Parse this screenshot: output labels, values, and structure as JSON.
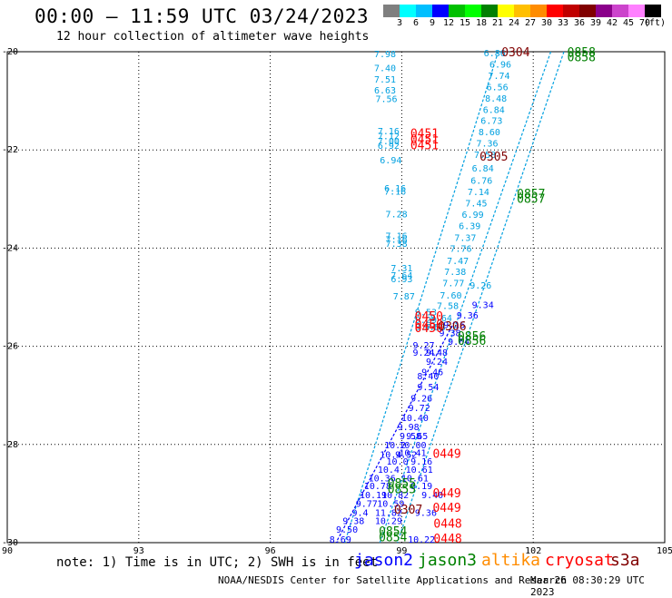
{
  "header": {
    "title": "00:00 – 11:59 UTC 03/24/2023",
    "subtitle": "12 hour collection of altimeter wave heights"
  },
  "scale": {
    "unit": "(ft)",
    "ticks": [
      "3",
      "6",
      "9",
      "12",
      "15",
      "18",
      "21",
      "24",
      "27",
      "30",
      "33",
      "36",
      "39",
      "42",
      "45",
      "70"
    ],
    "colors": [
      "#7f7f7f",
      "#00ffff",
      "#00bfff",
      "#0000ff",
      "#00c000",
      "#00ff00",
      "#008000",
      "#ffff00",
      "#ffbf00",
      "#ff8c00",
      "#ff0000",
      "#c00000",
      "#800000",
      "#8b008b",
      "#cc44cc",
      "#ff80ff",
      "#000000"
    ]
  },
  "footer": {
    "note": "note: 1) Time is in UTC; 2) SWH is in feet",
    "credit": "NOAA/NESDIS Center for Satellite Applications and Research",
    "timestamp": "Mar 26 08:30:29 UTC 2023"
  },
  "satellites": [
    {
      "name": "jason2",
      "color": "#0000ff"
    },
    {
      "name": "jason3",
      "color": "#008000"
    },
    {
      "name": "altika",
      "color": "#ff8c00"
    },
    {
      "name": "cryosat",
      "color": "#ff0000"
    },
    {
      "name": "s3a",
      "color": "#800000"
    }
  ],
  "chart_data": {
    "type": "scatter",
    "xlim": [
      90,
      105
    ],
    "ylim": [
      -30,
      -20
    ],
    "xticks": [
      "90",
      "93",
      "96",
      "99",
      "102",
      "105"
    ],
    "yticks": [
      "-20",
      "-22",
      "-24",
      "-26",
      "-28",
      "-30"
    ],
    "grid": true,
    "series": [
      {
        "name": "jason3 track A",
        "color": "#00a0e0",
        "points": [
          {
            "x": 98.62,
            "y": -20.04,
            "label": "7.98"
          },
          {
            "x": 98.62,
            "y": -20.32,
            "label": "7.40"
          },
          {
            "x": 98.62,
            "y": -20.55,
            "label": "7.51"
          },
          {
            "x": 98.62,
            "y": -20.78,
            "label": "6.63"
          },
          {
            "x": 98.65,
            "y": -20.95,
            "label": "7.56"
          },
          {
            "x": 98.7,
            "y": -21.61,
            "label": "7.16"
          },
          {
            "x": 98.7,
            "y": -21.71,
            "label": "7.12"
          },
          {
            "x": 98.7,
            "y": -21.81,
            "label": "7.00"
          },
          {
            "x": 98.7,
            "y": -21.9,
            "label": "6.92"
          },
          {
            "x": 98.75,
            "y": -22.2,
            "label": "6.94"
          },
          {
            "x": 98.85,
            "y": -22.77,
            "label": "6.16"
          },
          {
            "x": 98.85,
            "y": -22.84,
            "label": "7.16"
          },
          {
            "x": 98.88,
            "y": -23.3,
            "label": "7.28"
          },
          {
            "x": 98.88,
            "y": -23.74,
            "label": "7.16"
          },
          {
            "x": 98.88,
            "y": -23.82,
            "label": "7.16"
          },
          {
            "x": 98.88,
            "y": -23.9,
            "label": "7.38"
          },
          {
            "x": 99.0,
            "y": -24.4,
            "label": "7.31"
          },
          {
            "x": 99.0,
            "y": -24.55,
            "label": "7.64"
          },
          {
            "x": 99.0,
            "y": -24.62,
            "label": "6.93"
          },
          {
            "x": 99.05,
            "y": -24.97,
            "label": "7.87"
          },
          {
            "x": 101.12,
            "y": -20.02,
            "label": "6.86"
          },
          {
            "x": 101.25,
            "y": -20.25,
            "label": "6.96"
          },
          {
            "x": 101.22,
            "y": -20.48,
            "label": "7.74"
          },
          {
            "x": 101.18,
            "y": -20.71,
            "label": "6.56"
          },
          {
            "x": 101.15,
            "y": -20.94,
            "label": "8.48"
          },
          {
            "x": 101.1,
            "y": -21.17,
            "label": "6.84"
          },
          {
            "x": 101.05,
            "y": -21.4,
            "label": "6.73"
          },
          {
            "x": 101.0,
            "y": -21.63,
            "label": "8.60"
          },
          {
            "x": 100.95,
            "y": -21.86,
            "label": "7.36"
          },
          {
            "x": 100.9,
            "y": -22.09,
            "label": "7.58"
          },
          {
            "x": 100.85,
            "y": -22.37,
            "label": "6.84"
          },
          {
            "x": 100.82,
            "y": -22.62,
            "label": "6.76"
          },
          {
            "x": 100.75,
            "y": -22.85,
            "label": "7.14"
          },
          {
            "x": 100.7,
            "y": -23.08,
            "label": "7.45"
          },
          {
            "x": 100.62,
            "y": -23.31,
            "label": "6.99"
          },
          {
            "x": 100.55,
            "y": -23.54,
            "label": "6.39"
          },
          {
            "x": 100.45,
            "y": -23.78,
            "label": "7.37"
          },
          {
            "x": 100.35,
            "y": -24.0,
            "label": "7.76"
          },
          {
            "x": 100.28,
            "y": -24.25,
            "label": "7.47"
          },
          {
            "x": 100.22,
            "y": -24.47,
            "label": "7.38"
          },
          {
            "x": 100.18,
            "y": -24.7,
            "label": "7.77"
          },
          {
            "x": 100.12,
            "y": -24.95,
            "label": "7.60"
          },
          {
            "x": 100.05,
            "y": -25.17,
            "label": "7.58"
          },
          {
            "x": 99.9,
            "y": -25.42,
            "label": "8.64"
          },
          {
            "x": 99.55,
            "y": -25.3,
            "label": "9.53"
          },
          {
            "x": 99.55,
            "y": -25.45,
            "label": "9.29"
          },
          {
            "x": 99.55,
            "y": -25.6,
            "label": "8.74"
          },
          {
            "x": 99.75,
            "y": -25.6,
            "label": "9.58"
          },
          {
            "x": 100.8,
            "y": -24.75,
            "label": "9.26"
          }
        ]
      },
      {
        "name": "jason2",
        "color": "#0000ff",
        "points": [
          {
            "x": 100.85,
            "y": -25.15,
            "label": "9.34"
          },
          {
            "x": 100.5,
            "y": -25.36,
            "label": "9.36"
          },
          {
            "x": 100.2,
            "y": -25.55,
            "label": "9.15"
          },
          {
            "x": 100.1,
            "y": -25.72,
            "label": "9.38"
          },
          {
            "x": 100.3,
            "y": -25.9,
            "label": "9.64"
          },
          {
            "x": 99.5,
            "y": -25.97,
            "label": "9.27"
          },
          {
            "x": 99.5,
            "y": -26.12,
            "label": "9.24"
          },
          {
            "x": 99.8,
            "y": -26.12,
            "label": "9.48"
          },
          {
            "x": 99.8,
            "y": -26.3,
            "label": "9.24"
          },
          {
            "x": 99.7,
            "y": -26.52,
            "label": "9.46"
          },
          {
            "x": 99.6,
            "y": -26.6,
            "label": "8.40"
          },
          {
            "x": 99.6,
            "y": -26.82,
            "label": "9.54"
          },
          {
            "x": 99.45,
            "y": -27.05,
            "label": "9.26"
          },
          {
            "x": 99.4,
            "y": -27.25,
            "label": "9.72"
          },
          {
            "x": 99.3,
            "y": -27.45,
            "label": "10.40"
          },
          {
            "x": 99.15,
            "y": -27.63,
            "label": "9.98"
          },
          {
            "x": 99.35,
            "y": -27.82,
            "label": "9.65"
          },
          {
            "x": 99.2,
            "y": -27.82,
            "label": "9.58"
          },
          {
            "x": 99.25,
            "y": -28.0,
            "label": "10.00"
          },
          {
            "x": 98.85,
            "y": -28.0,
            "label": "10.2"
          },
          {
            "x": 99.25,
            "y": -28.16,
            "label": "10.41"
          },
          {
            "x": 98.75,
            "y": -28.2,
            "label": "10.4"
          },
          {
            "x": 99.1,
            "y": -28.2,
            "label": "9.52"
          },
          {
            "x": 98.9,
            "y": -28.34,
            "label": "10.0"
          },
          {
            "x": 99.45,
            "y": -28.34,
            "label": "9.16"
          },
          {
            "x": 98.7,
            "y": -28.5,
            "label": "10.4"
          },
          {
            "x": 99.4,
            "y": -28.5,
            "label": "10.61"
          },
          {
            "x": 98.55,
            "y": -28.68,
            "label": "10.36"
          },
          {
            "x": 99.3,
            "y": -28.68,
            "label": "10.61"
          },
          {
            "x": 98.45,
            "y": -28.84,
            "label": "10.78"
          },
          {
            "x": 99.45,
            "y": -28.84,
            "label": "9.19"
          },
          {
            "x": 98.35,
            "y": -29.02,
            "label": "10.19"
          },
          {
            "x": 98.85,
            "y": -29.02,
            "label": "10.82"
          },
          {
            "x": 99.7,
            "y": -29.02,
            "label": "9.40"
          },
          {
            "x": 98.2,
            "y": -29.2,
            "label": "9.77"
          },
          {
            "x": 98.75,
            "y": -29.2,
            "label": "10.59"
          },
          {
            "x": 98.05,
            "y": -29.38,
            "label": "9.4"
          },
          {
            "x": 98.7,
            "y": -29.38,
            "label": "11.82"
          },
          {
            "x": 99.55,
            "y": -29.38,
            "label": "9.36"
          },
          {
            "x": 97.9,
            "y": -29.55,
            "label": "9.38"
          },
          {
            "x": 98.7,
            "y": -29.55,
            "label": "10.29"
          },
          {
            "x": 97.75,
            "y": -29.72,
            "label": "9.50"
          },
          {
            "x": 99.45,
            "y": -29.93,
            "label": "10.22"
          },
          {
            "x": 97.6,
            "y": -29.93,
            "label": "8.69"
          }
        ]
      },
      {
        "name": "cryosat",
        "color": "#ff0000",
        "points": [
          {
            "x": 99.52,
            "y": -21.67,
            "label": "0451"
          },
          {
            "x": 99.52,
            "y": -21.79,
            "label": "0451"
          },
          {
            "x": 99.52,
            "y": -21.91,
            "label": "0451"
          },
          {
            "x": 99.62,
            "y": -25.4,
            "label": "0450"
          },
          {
            "x": 99.62,
            "y": -25.56,
            "label": "0450"
          },
          {
            "x": 99.62,
            "y": -25.64,
            "label": "0450"
          },
          {
            "x": 100.03,
            "y": -28.2,
            "label": "0449"
          },
          {
            "x": 100.03,
            "y": -29.0,
            "label": "0449"
          },
          {
            "x": 100.03,
            "y": -29.3,
            "label": "0449"
          },
          {
            "x": 100.05,
            "y": -29.62,
            "label": "0448"
          },
          {
            "x": 100.05,
            "y": -29.93,
            "label": "0448"
          }
        ]
      },
      {
        "name": "s3a",
        "color": "#800000",
        "points": [
          {
            "x": 101.6,
            "y": -20.02,
            "label": "0304"
          },
          {
            "x": 101.1,
            "y": -22.14,
            "label": "0305"
          },
          {
            "x": 100.15,
            "y": -25.6,
            "label": "0306"
          },
          {
            "x": 99.15,
            "y": -29.33,
            "label": "0307"
          }
        ]
      },
      {
        "name": "jason3",
        "color": "#008000",
        "points": [
          {
            "x": 103.1,
            "y": -20.02,
            "label": "0858"
          },
          {
            "x": 103.1,
            "y": -20.12,
            "label": "0858"
          },
          {
            "x": 101.95,
            "y": -22.9,
            "label": "0857"
          },
          {
            "x": 101.95,
            "y": -23.0,
            "label": "0857"
          },
          {
            "x": 100.6,
            "y": -25.8,
            "label": "0856"
          },
          {
            "x": 100.6,
            "y": -25.9,
            "label": "0856"
          },
          {
            "x": 99.0,
            "y": -28.8,
            "label": "0855"
          },
          {
            "x": 99.0,
            "y": -28.92,
            "label": "0855"
          },
          {
            "x": 98.8,
            "y": -29.78,
            "label": "0854"
          },
          {
            "x": 98.8,
            "y": -29.9,
            "label": "0854"
          }
        ]
      }
    ]
  }
}
